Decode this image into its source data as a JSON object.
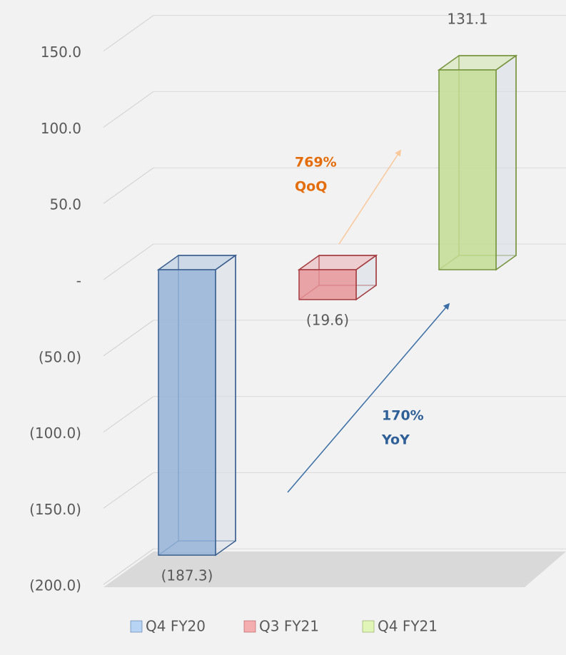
{
  "chart_data": {
    "type": "bar3d",
    "series": [
      {
        "name": "Q4 FY20",
        "color": "#95b3d7",
        "stroke": "#3a5f8f",
        "legend_color": "#b8d4f5",
        "values": [
          -187.3
        ],
        "value_labels": [
          "(187.3)"
        ]
      },
      {
        "name": "Q3 FY21",
        "color": "#e6959a",
        "stroke": "#a33b3f",
        "legend_color": "#f4aeb0",
        "values": [
          -19.6
        ],
        "value_labels": [
          "(19.6)"
        ]
      },
      {
        "name": "Q4 FY21",
        "color": "#c3dd94",
        "stroke": "#76933c",
        "legend_color": "#e2f5b8",
        "values": [
          131.1
        ],
        "value_labels": [
          "131.1"
        ]
      }
    ],
    "ylim": [
      -200,
      150
    ],
    "yticks": [
      {
        "value": 150,
        "label": "150.0"
      },
      {
        "value": 100,
        "label": "100.0"
      },
      {
        "value": 50,
        "label": "50.0"
      },
      {
        "value": 0,
        "label": "-"
      },
      {
        "value": -50,
        "label": "(50.0)"
      },
      {
        "value": -100,
        "label": "(100.0)"
      },
      {
        "value": -150,
        "label": "(150.0)"
      },
      {
        "value": -200,
        "label": "(200.0)"
      }
    ],
    "grid": true,
    "annotations": [
      {
        "lines": [
          "769%",
          "QoQ"
        ],
        "color": "#e46c0a"
      },
      {
        "lines": [
          "170%",
          "YoY"
        ],
        "color": "#2f5f97"
      }
    ]
  }
}
